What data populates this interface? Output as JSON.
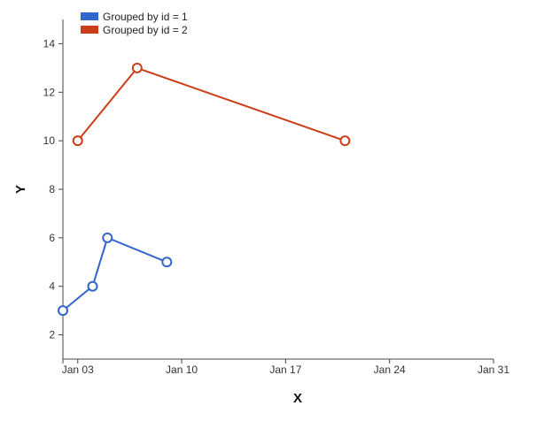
{
  "chart_data": {
    "type": "line",
    "title": "",
    "xlabel": "X",
    "ylabel": "Y",
    "x_axis": {
      "type": "date",
      "range": [
        "2023-01-02",
        "2023-01-31"
      ],
      "ticks": [
        {
          "value": "2023-01-03",
          "label": "Jan 03"
        },
        {
          "value": "2023-01-10",
          "label": "Jan 10"
        },
        {
          "value": "2023-01-17",
          "label": "Jan 17"
        },
        {
          "value": "2023-01-24",
          "label": "Jan 24"
        },
        {
          "value": "2023-01-31",
          "label": "Jan 31"
        }
      ]
    },
    "y_axis": {
      "range": [
        1,
        15
      ],
      "ticks": [
        2,
        4,
        6,
        8,
        10,
        12,
        14
      ]
    },
    "grid": false,
    "legend": {
      "position": "top-left"
    },
    "series": [
      {
        "name": "Grouped by id = 1",
        "color": "#3366cc",
        "points": [
          {
            "x": "2023-01-02",
            "y": 3
          },
          {
            "x": "2023-01-04",
            "y": 4
          },
          {
            "x": "2023-01-05",
            "y": 6
          },
          {
            "x": "2023-01-09",
            "y": 5
          }
        ]
      },
      {
        "name": "Grouped by id = 2",
        "color": "#cc3e1a",
        "points": [
          {
            "x": "2023-01-03",
            "y": 10
          },
          {
            "x": "2023-01-07",
            "y": 13
          },
          {
            "x": "2023-01-21",
            "y": 10
          }
        ]
      }
    ]
  }
}
